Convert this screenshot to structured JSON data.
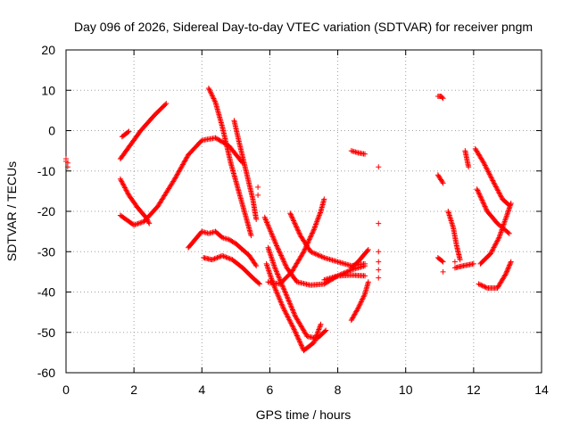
{
  "chart_data": {
    "type": "scatter",
    "title": "Day 096 of 2026, Sidereal Day-to-day VTEC variation (SDTVAR) for receiver pngm",
    "xlabel": "GPS time / hours",
    "ylabel": "SDTVAR / TECUs",
    "xlim": [
      0,
      14
    ],
    "ylim": [
      -60,
      20
    ],
    "xticks": [
      0,
      2,
      4,
      6,
      8,
      10,
      12,
      14
    ],
    "yticks": [
      -60,
      -50,
      -40,
      -30,
      -20,
      -10,
      0,
      10,
      20
    ],
    "xtick_labels": [
      "0",
      "2",
      "4",
      "6",
      "8",
      "10",
      "12",
      "14"
    ],
    "ytick_labels": [
      "-60",
      "-50",
      "-40",
      "-30",
      "-20",
      "-10",
      "0",
      "10",
      "20"
    ],
    "grid": true,
    "marker": "plus",
    "color": "#ff0000",
    "tracks": [
      [
        [
          1.6,
          -7.0
        ],
        [
          1.9,
          -3.5
        ],
        [
          2.2,
          0.0
        ],
        [
          2.6,
          3.8
        ],
        [
          2.95,
          6.7
        ]
      ],
      [
        [
          1.65,
          -1.5
        ],
        [
          1.85,
          -0.2
        ]
      ],
      [
        [
          1.6,
          -12.0
        ],
        [
          1.85,
          -16.0
        ],
        [
          2.1,
          -19.0
        ],
        [
          2.35,
          -21.5
        ],
        [
          2.45,
          -23.0
        ]
      ],
      [
        [
          1.6,
          -21.0
        ],
        [
          1.85,
          -22.5
        ],
        [
          2.0,
          -23.4
        ],
        [
          2.3,
          -22.5
        ],
        [
          2.7,
          -18.8
        ],
        [
          3.2,
          -12.0
        ],
        [
          3.6,
          -6.0
        ],
        [
          4.0,
          -2.4
        ],
        [
          4.4,
          -1.8
        ],
        [
          4.8,
          -3.8
        ],
        [
          5.2,
          -8.0
        ]
      ],
      [
        [
          3.6,
          -29.0
        ],
        [
          3.8,
          -27.0
        ],
        [
          4.0,
          -25.0
        ],
        [
          4.2,
          -25.5
        ],
        [
          4.4,
          -25.0
        ],
        [
          4.6,
          -26.5
        ],
        [
          4.8,
          -27.0
        ],
        [
          5.0,
          -28.0
        ],
        [
          5.2,
          -29.5
        ],
        [
          5.4,
          -31.0
        ],
        [
          5.6,
          -33.5
        ]
      ],
      [
        [
          4.05,
          -31.5
        ],
        [
          4.3,
          -32.0
        ],
        [
          4.6,
          -31.0
        ],
        [
          4.9,
          -32.0
        ],
        [
          5.2,
          -34.0
        ],
        [
          5.5,
          -36.5
        ],
        [
          5.7,
          -38.0
        ]
      ],
      [
        [
          4.2,
          10.5
        ],
        [
          4.4,
          7.0
        ],
        [
          4.6,
          1.0
        ],
        [
          4.85,
          -8.0
        ],
        [
          5.1,
          -15.5
        ],
        [
          5.3,
          -21.5
        ],
        [
          5.45,
          -26.0
        ]
      ],
      [
        [
          4.95,
          2.5
        ],
        [
          5.1,
          -3.0
        ],
        [
          5.3,
          -10.0
        ],
        [
          5.5,
          -17.0
        ],
        [
          5.6,
          -22.0
        ]
      ],
      [
        [
          5.85,
          -21.5
        ],
        [
          6.2,
          -28.5
        ],
        [
          6.5,
          -34.0
        ],
        [
          6.8,
          -37.5
        ],
        [
          7.2,
          -38.3
        ],
        [
          7.6,
          -38.0
        ],
        [
          8.0,
          -36.0
        ],
        [
          8.4,
          -34.5
        ],
        [
          8.8,
          -33.5
        ]
      ],
      [
        [
          5.95,
          -29.0
        ],
        [
          6.15,
          -34.0
        ],
        [
          6.45,
          -40.0
        ],
        [
          6.75,
          -46.0
        ],
        [
          7.1,
          -51.0
        ],
        [
          7.4,
          -51.5
        ],
        [
          7.65,
          -49.5
        ]
      ],
      [
        [
          5.9,
          -33.0
        ],
        [
          6.1,
          -38.0
        ],
        [
          6.4,
          -44.0
        ],
        [
          6.7,
          -49.0
        ],
        [
          7.0,
          -54.5
        ],
        [
          7.3,
          -52.5
        ],
        [
          7.5,
          -48.0
        ]
      ],
      [
        [
          5.95,
          -37.5
        ],
        [
          6.3,
          -38.0
        ],
        [
          6.65,
          -35.0
        ],
        [
          7.0,
          -30.0
        ],
        [
          7.3,
          -24.5
        ],
        [
          7.5,
          -20.0
        ],
        [
          7.6,
          -17.0
        ]
      ],
      [
        [
          6.6,
          -20.5
        ],
        [
          6.9,
          -26.0
        ],
        [
          7.2,
          -30.0
        ],
        [
          7.6,
          -31.5
        ],
        [
          8.0,
          -32.5
        ],
        [
          8.4,
          -33.5
        ],
        [
          8.8,
          -33.0
        ]
      ],
      [
        [
          7.6,
          -37.0
        ],
        [
          8.0,
          -36.0
        ],
        [
          8.4,
          -35.8
        ],
        [
          8.8,
          -36.0
        ]
      ],
      [
        [
          8.4,
          -47.0
        ],
        [
          8.6,
          -44.0
        ],
        [
          8.8,
          -40.5
        ],
        [
          8.9,
          -37.5
        ]
      ],
      [
        [
          8.4,
          -34.0
        ],
        [
          8.6,
          -32.5
        ],
        [
          8.9,
          -29.5
        ]
      ],
      [
        [
          8.4,
          -5.0
        ],
        [
          8.6,
          -5.5
        ],
        [
          8.8,
          -5.8
        ]
      ],
      [
        [
          10.95,
          8.5
        ],
        [
          11.05,
          8.5
        ],
        [
          11.1,
          8.0
        ]
      ],
      [
        [
          10.95,
          -11.0
        ],
        [
          11.1,
          -13.0
        ]
      ],
      [
        [
          10.95,
          -31.5
        ],
        [
          11.1,
          -32.5
        ]
      ],
      [
        [
          11.25,
          -20.0
        ],
        [
          11.4,
          -24.0
        ],
        [
          11.5,
          -28.5
        ],
        [
          11.6,
          -32.0
        ]
      ],
      [
        [
          11.45,
          -34.0
        ],
        [
          11.7,
          -33.5
        ],
        [
          12.0,
          -33.0
        ]
      ],
      [
        [
          11.75,
          -5.0
        ],
        [
          11.8,
          -7.0
        ],
        [
          11.85,
          -9.0
        ]
      ],
      [
        [
          12.05,
          -4.5
        ],
        [
          12.3,
          -8.0
        ],
        [
          12.6,
          -13.0
        ],
        [
          12.85,
          -17.0
        ],
        [
          13.05,
          -18.5
        ]
      ],
      [
        [
          12.1,
          -14.5
        ],
        [
          12.4,
          -20.0
        ],
        [
          12.7,
          -23.0
        ],
        [
          13.05,
          -25.5
        ]
      ],
      [
        [
          12.2,
          -33.0
        ],
        [
          12.5,
          -30.5
        ],
        [
          12.75,
          -26.5
        ],
        [
          13.0,
          -20.5
        ],
        [
          13.1,
          -18.0
        ]
      ],
      [
        [
          12.15,
          -38.0
        ],
        [
          12.4,
          -39.0
        ],
        [
          12.7,
          -39.0
        ],
        [
          12.95,
          -35.5
        ],
        [
          13.1,
          -32.5
        ]
      ]
    ],
    "points": [
      [
        0.0,
        -7.0
      ],
      [
        0.0,
        -7.6
      ],
      [
        0.05,
        -8.0
      ],
      [
        0.05,
        -9.0
      ],
      [
        5.65,
        -14.0
      ],
      [
        5.65,
        -16.0
      ],
      [
        9.2,
        -9.0
      ],
      [
        9.2,
        -23.0
      ],
      [
        9.2,
        -30.0
      ],
      [
        9.2,
        -32.5
      ],
      [
        9.2,
        -34.5
      ],
      [
        9.2,
        -36.5
      ],
      [
        11.1,
        -35.0
      ],
      [
        11.45,
        -32.5
      ]
    ]
  }
}
